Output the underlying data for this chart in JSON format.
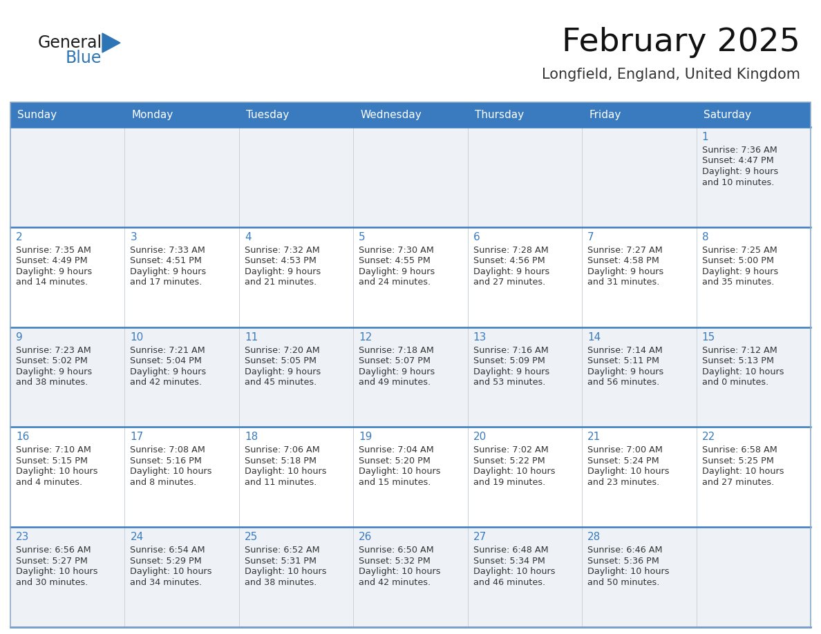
{
  "title": "February 2025",
  "subtitle": "Longfield, England, United Kingdom",
  "days_of_week": [
    "Sunday",
    "Monday",
    "Tuesday",
    "Wednesday",
    "Thursday",
    "Friday",
    "Saturday"
  ],
  "header_bg": "#3a7bbf",
  "header_text": "#ffffff",
  "row_bg_odd": "#eef2f7",
  "row_bg_even": "#ffffff",
  "separator_color": "#3a7bbf",
  "day_number_color": "#3a7bbf",
  "text_color": "#333333",
  "logo_general_color": "#1a1a1a",
  "logo_blue_color": "#2e75b6",
  "calendar_data": [
    {
      "day": 1,
      "col": 6,
      "row": 0,
      "sunrise": "7:36 AM",
      "sunset": "4:47 PM",
      "daylight": "9 hours and 10 minutes."
    },
    {
      "day": 2,
      "col": 0,
      "row": 1,
      "sunrise": "7:35 AM",
      "sunset": "4:49 PM",
      "daylight": "9 hours and 14 minutes."
    },
    {
      "day": 3,
      "col": 1,
      "row": 1,
      "sunrise": "7:33 AM",
      "sunset": "4:51 PM",
      "daylight": "9 hours and 17 minutes."
    },
    {
      "day": 4,
      "col": 2,
      "row": 1,
      "sunrise": "7:32 AM",
      "sunset": "4:53 PM",
      "daylight": "9 hours and 21 minutes."
    },
    {
      "day": 5,
      "col": 3,
      "row": 1,
      "sunrise": "7:30 AM",
      "sunset": "4:55 PM",
      "daylight": "9 hours and 24 minutes."
    },
    {
      "day": 6,
      "col": 4,
      "row": 1,
      "sunrise": "7:28 AM",
      "sunset": "4:56 PM",
      "daylight": "9 hours and 27 minutes."
    },
    {
      "day": 7,
      "col": 5,
      "row": 1,
      "sunrise": "7:27 AM",
      "sunset": "4:58 PM",
      "daylight": "9 hours and 31 minutes."
    },
    {
      "day": 8,
      "col": 6,
      "row": 1,
      "sunrise": "7:25 AM",
      "sunset": "5:00 PM",
      "daylight": "9 hours and 35 minutes."
    },
    {
      "day": 9,
      "col": 0,
      "row": 2,
      "sunrise": "7:23 AM",
      "sunset": "5:02 PM",
      "daylight": "9 hours and 38 minutes."
    },
    {
      "day": 10,
      "col": 1,
      "row": 2,
      "sunrise": "7:21 AM",
      "sunset": "5:04 PM",
      "daylight": "9 hours and 42 minutes."
    },
    {
      "day": 11,
      "col": 2,
      "row": 2,
      "sunrise": "7:20 AM",
      "sunset": "5:05 PM",
      "daylight": "9 hours and 45 minutes."
    },
    {
      "day": 12,
      "col": 3,
      "row": 2,
      "sunrise": "7:18 AM",
      "sunset": "5:07 PM",
      "daylight": "9 hours and 49 minutes."
    },
    {
      "day": 13,
      "col": 4,
      "row": 2,
      "sunrise": "7:16 AM",
      "sunset": "5:09 PM",
      "daylight": "9 hours and 53 minutes."
    },
    {
      "day": 14,
      "col": 5,
      "row": 2,
      "sunrise": "7:14 AM",
      "sunset": "5:11 PM",
      "daylight": "9 hours and 56 minutes."
    },
    {
      "day": 15,
      "col": 6,
      "row": 2,
      "sunrise": "7:12 AM",
      "sunset": "5:13 PM",
      "daylight": "10 hours and 0 minutes."
    },
    {
      "day": 16,
      "col": 0,
      "row": 3,
      "sunrise": "7:10 AM",
      "sunset": "5:15 PM",
      "daylight": "10 hours and 4 minutes."
    },
    {
      "day": 17,
      "col": 1,
      "row": 3,
      "sunrise": "7:08 AM",
      "sunset": "5:16 PM",
      "daylight": "10 hours and 8 minutes."
    },
    {
      "day": 18,
      "col": 2,
      "row": 3,
      "sunrise": "7:06 AM",
      "sunset": "5:18 PM",
      "daylight": "10 hours and 11 minutes."
    },
    {
      "day": 19,
      "col": 3,
      "row": 3,
      "sunrise": "7:04 AM",
      "sunset": "5:20 PM",
      "daylight": "10 hours and 15 minutes."
    },
    {
      "day": 20,
      "col": 4,
      "row": 3,
      "sunrise": "7:02 AM",
      "sunset": "5:22 PM",
      "daylight": "10 hours and 19 minutes."
    },
    {
      "day": 21,
      "col": 5,
      "row": 3,
      "sunrise": "7:00 AM",
      "sunset": "5:24 PM",
      "daylight": "10 hours and 23 minutes."
    },
    {
      "day": 22,
      "col": 6,
      "row": 3,
      "sunrise": "6:58 AM",
      "sunset": "5:25 PM",
      "daylight": "10 hours and 27 minutes."
    },
    {
      "day": 23,
      "col": 0,
      "row": 4,
      "sunrise": "6:56 AM",
      "sunset": "5:27 PM",
      "daylight": "10 hours and 30 minutes."
    },
    {
      "day": 24,
      "col": 1,
      "row": 4,
      "sunrise": "6:54 AM",
      "sunset": "5:29 PM",
      "daylight": "10 hours and 34 minutes."
    },
    {
      "day": 25,
      "col": 2,
      "row": 4,
      "sunrise": "6:52 AM",
      "sunset": "5:31 PM",
      "daylight": "10 hours and 38 minutes."
    },
    {
      "day": 26,
      "col": 3,
      "row": 4,
      "sunrise": "6:50 AM",
      "sunset": "5:32 PM",
      "daylight": "10 hours and 42 minutes."
    },
    {
      "day": 27,
      "col": 4,
      "row": 4,
      "sunrise": "6:48 AM",
      "sunset": "5:34 PM",
      "daylight": "10 hours and 46 minutes."
    },
    {
      "day": 28,
      "col": 5,
      "row": 4,
      "sunrise": "6:46 AM",
      "sunset": "5:36 PM",
      "daylight": "10 hours and 50 minutes."
    }
  ]
}
